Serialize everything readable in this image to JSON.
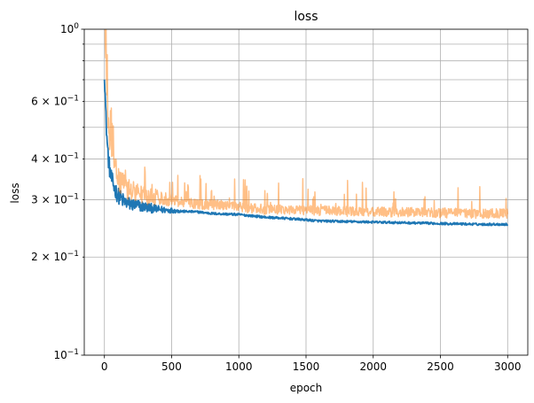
{
  "chart_data": {
    "type": "line",
    "title": "loss",
    "xlabel": "epoch",
    "ylabel": "loss",
    "xlim": [
      -150,
      3150
    ],
    "ylim": [
      0.1,
      1.0
    ],
    "yscale": "log",
    "grid": true,
    "x_ticks": [
      0,
      500,
      1000,
      1500,
      2000,
      2500,
      3000
    ],
    "y_major_ticks": [
      {
        "value": 0.1,
        "base": "10",
        "exp": "−1"
      },
      {
        "value": 1.0,
        "base": "10",
        "exp": "0"
      }
    ],
    "y_minor_ticks": [
      {
        "value": 0.2,
        "coef": "2",
        "exp": "−1"
      },
      {
        "value": 0.3,
        "coef": "3",
        "exp": "−1"
      },
      {
        "value": 0.4,
        "coef": "4",
        "exp": "−1"
      },
      {
        "value": 0.6,
        "coef": "6",
        "exp": "−1"
      }
    ],
    "y_unlabeled_minor_ticks": [
      0.5,
      0.7,
      0.8,
      0.9
    ],
    "series": [
      {
        "color": "#1f77b4",
        "opacity": 1.0,
        "noise": 0.008,
        "spike_prob": 0.0,
        "x": [
          0,
          10,
          20,
          30,
          40,
          50,
          75,
          100,
          150,
          200,
          300,
          400,
          500,
          600,
          700,
          800,
          1000,
          1200,
          1400,
          1600,
          1800,
          2000,
          2200,
          2400,
          2600,
          2800,
          3000
        ],
        "y": [
          0.75,
          0.55,
          0.45,
          0.4,
          0.37,
          0.35,
          0.325,
          0.31,
          0.295,
          0.29,
          0.285,
          0.28,
          0.278,
          0.276,
          0.275,
          0.272,
          0.27,
          0.265,
          0.262,
          0.258,
          0.257,
          0.256,
          0.255,
          0.254,
          0.253,
          0.252,
          0.252
        ]
      },
      {
        "color": "#ff7f0e",
        "opacity": 0.5,
        "noise": 0.035,
        "spike_prob": 0.06,
        "x": [
          0,
          10,
          20,
          30,
          40,
          50,
          75,
          100,
          150,
          200,
          300,
          400,
          500,
          600,
          700,
          800,
          1000,
          1200,
          1400,
          1600,
          1800,
          2000,
          2200,
          2400,
          2600,
          2800,
          3000
        ],
        "y": [
          1.1,
          0.8,
          0.6,
          0.5,
          0.45,
          0.42,
          0.38,
          0.35,
          0.33,
          0.32,
          0.31,
          0.305,
          0.3,
          0.295,
          0.29,
          0.29,
          0.285,
          0.28,
          0.28,
          0.278,
          0.276,
          0.275,
          0.275,
          0.274,
          0.273,
          0.272,
          0.272
        ]
      }
    ]
  }
}
